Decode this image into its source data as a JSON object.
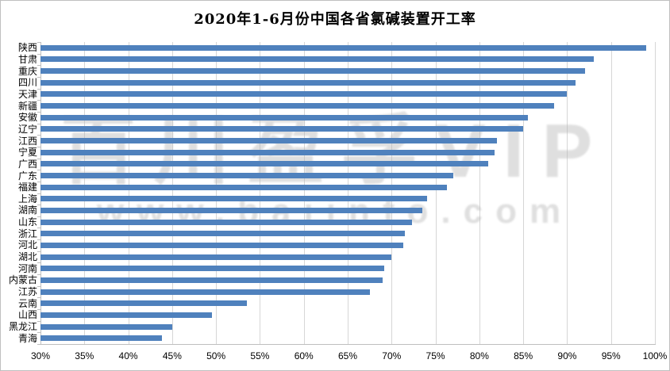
{
  "title": "2020年1-6月份中国各省氯碱装置开工率",
  "watermark": {
    "line1": "百川盈孚VIP",
    "line2": "www.baiinfo.com"
  },
  "colors": {
    "bar": "#4f81bd",
    "gridline": "#d6d6d6",
    "axis": "#bfbfbf",
    "watermark": "#b9b9b9",
    "title_text": "#000000"
  },
  "chart_data": {
    "type": "bar",
    "orientation": "horizontal",
    "title": "2020年1-6月份中国各省氯碱装置开工率",
    "categories": [
      "陕西",
      "甘肃",
      "重庆",
      "四川",
      "天津",
      "新疆",
      "安徽",
      "辽宁",
      "江西",
      "宁夏",
      "广西",
      "广东",
      "福建",
      "上海",
      "湖南",
      "山东",
      "浙江",
      "河北",
      "湖北",
      "河南",
      "内蒙古",
      "江苏",
      "云南",
      "山西",
      "黑龙江",
      "青海"
    ],
    "values": [
      99,
      93,
      92,
      91,
      90,
      88.5,
      85.5,
      85,
      82,
      81.7,
      81,
      77,
      76.3,
      74,
      73.5,
      72.3,
      71.5,
      71.3,
      70,
      69.2,
      69,
      67.5,
      53.5,
      49.5,
      45,
      43.8
    ],
    "unit": "%",
    "xlim": [
      30,
      100
    ],
    "x_tick_step": 5,
    "x_ticks": [
      "30%",
      "35%",
      "40%",
      "45%",
      "50%",
      "55%",
      "60%",
      "65%",
      "70%",
      "75%",
      "80%",
      "85%",
      "90%",
      "95%",
      "100%"
    ],
    "grid": true,
    "legend": false,
    "bar_color": "#4f81bd"
  }
}
